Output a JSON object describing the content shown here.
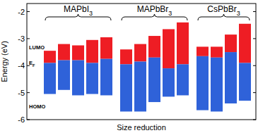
{
  "chart_data": {
    "type": "floating_bar",
    "x_label": "Size reduction",
    "y_label": "Energy (eV)",
    "categories": [
      null,
      null,
      null,
      null,
      null,
      null,
      null,
      null,
      null,
      null,
      null,
      null,
      null,
      null
    ],
    "groups": [
      {
        "label": "MAPbI3",
        "range": [
          0,
          4
        ]
      },
      {
        "label": "MAPbBr3",
        "range": [
          5,
          9
        ]
      },
      {
        "label": "CsPbBr3",
        "range": [
          10,
          13
        ]
      }
    ],
    "series": [
      {
        "name": "LUMO",
        "color": "#ee1d24",
        "values": [
          -3.45,
          -3.2,
          -3.25,
          -3.05,
          -2.95,
          -3.4,
          -3.2,
          -2.9,
          -2.65,
          -2.4,
          -3.3,
          -3.3,
          -2.85,
          -2.45
        ]
      },
      {
        "name": "EF",
        "values": [
          -3.9,
          -3.8,
          -3.8,
          -3.9,
          -3.75,
          -3.95,
          -3.85,
          -3.7,
          -4.1,
          -3.95,
          -3.65,
          -3.7,
          -3.5,
          -3.9
        ]
      },
      {
        "name": "HOMO",
        "color": "#2f62d9",
        "values": [
          -5.05,
          -4.9,
          -5.1,
          -5.05,
          -5.1,
          -5.7,
          -5.7,
          -5.35,
          -5.15,
          -5.1,
          -5.65,
          -5.7,
          -5.4,
          -5.3
        ]
      }
    ],
    "ylim": [
      -6,
      -1.7
    ],
    "yticks": [
      -6,
      -5,
      -4,
      -3,
      -2
    ],
    "grid": false
  }
}
